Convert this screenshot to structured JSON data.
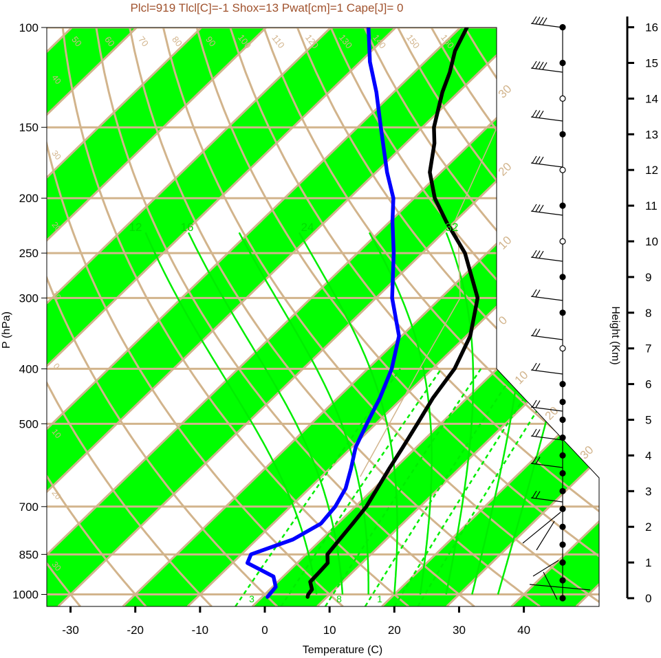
{
  "chart_data": {
    "type": "line",
    "subtype": "skew-t log-p diagram",
    "title": "Plcl=919 Tlcl[C]=-1 Shox=13 Pwat[cm]=1 Cape[J]= 0",
    "xlabel": "Temperature (C)",
    "ylabel": "P (hPa)",
    "ylabel_right": "Height (Km)",
    "x_ticks": [
      -30,
      -20,
      -10,
      0,
      10,
      20,
      30,
      40
    ],
    "y_ticks": [
      100,
      150,
      200,
      250,
      300,
      400,
      500,
      700,
      850,
      1000
    ],
    "height_ticks": [
      0,
      1,
      2,
      3,
      4,
      5,
      6,
      7,
      8,
      9,
      10,
      11,
      12,
      13,
      14,
      15,
      16
    ],
    "isotherm_labels_top": [
      "50",
      "60",
      "70",
      "80",
      "90",
      "100",
      "110",
      "120",
      "130",
      "140",
      "150",
      "160"
    ],
    "isotherm_labels_right": [
      "30",
      "20",
      "10",
      "0",
      "10",
      "20",
      "30"
    ],
    "isotherm_labels_left": [
      "40",
      "30",
      "20",
      "10",
      "0",
      "10",
      "20",
      "30"
    ],
    "mixing_ratio_labels": [
      "12",
      "16",
      "24",
      "32"
    ],
    "mixing_ratio_bottom_labels": [
      "3",
      "8",
      "1"
    ],
    "colors": {
      "temperature": "#000000",
      "dewpoint": "#0000ff",
      "band": "#00ff00",
      "grid": "#d2b48c",
      "adiabat": "#00ee00",
      "title": "#a0522d"
    },
    "series": [
      {
        "key": "temperature",
        "points": [
          [
            1010,
            7
          ],
          [
            1000,
            6.7
          ],
          [
            980,
            6.5
          ],
          [
            950,
            5
          ],
          [
            920,
            4.9
          ],
          [
            880,
            4.7
          ],
          [
            850,
            3.3
          ],
          [
            800,
            2.8
          ],
          [
            750,
            2.3
          ],
          [
            700,
            1.7
          ],
          [
            650,
            0.5
          ],
          [
            600,
            -0.8
          ],
          [
            550,
            -2.1
          ],
          [
            500,
            -3.6
          ],
          [
            450,
            -5.3
          ],
          [
            400,
            -6.6
          ],
          [
            350,
            -9.4
          ],
          [
            300,
            -14.3
          ],
          [
            250,
            -23.4
          ],
          [
            220,
            -31.3
          ],
          [
            200,
            -36.8
          ],
          [
            180,
            -41.7
          ],
          [
            160,
            -45.6
          ],
          [
            150,
            -48.2
          ],
          [
            130,
            -52.5
          ],
          [
            120,
            -54.5
          ],
          [
            110,
            -57.1
          ],
          [
            100,
            -59
          ]
        ]
      },
      {
        "key": "dewpoint",
        "points": [
          [
            1010,
            0.8
          ],
          [
            970,
            0.5
          ],
          [
            930,
            -1.5
          ],
          [
            880,
            -7.7
          ],
          [
            850,
            -8.5
          ],
          [
            800,
            -4.4
          ],
          [
            750,
            -2.6
          ],
          [
            700,
            -3.1
          ],
          [
            650,
            -4.4
          ],
          [
            600,
            -6.7
          ],
          [
            550,
            -9.4
          ],
          [
            500,
            -11.4
          ],
          [
            450,
            -13.5
          ],
          [
            400,
            -16.3
          ],
          [
            350,
            -20.4
          ],
          [
            300,
            -27.5
          ],
          [
            250,
            -34.4
          ],
          [
            220,
            -39.6
          ],
          [
            200,
            -43.2
          ],
          [
            180,
            -48.3
          ],
          [
            150,
            -56.4
          ],
          [
            130,
            -62.7
          ],
          [
            115,
            -68.5
          ],
          [
            100,
            -74.2
          ]
        ]
      }
    ],
    "wind_barb_heights_km": [
      0,
      0.5,
      1,
      1.5,
      2,
      2.5,
      3,
      3.5,
      4,
      4.5,
      5,
      5.5,
      6,
      7,
      8,
      9,
      10,
      11,
      12,
      13,
      14,
      15,
      16
    ]
  }
}
